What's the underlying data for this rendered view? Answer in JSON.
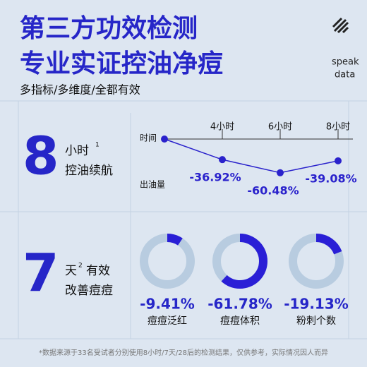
{
  "header": {
    "title_lines": [
      "第三方功效检测",
      "专业实证控油净痘"
    ],
    "subtitle": "多指标/多维度/全都有效",
    "brand": [
      "speak",
      "data"
    ]
  },
  "sections": [
    {
      "number": "8",
      "unit": "小时",
      "note": "1",
      "desc": "控油续航"
    },
    {
      "number": "7",
      "unit": "天",
      "note": "2",
      "extra": "有效",
      "desc": "改善痘痘"
    }
  ],
  "chart_data": [
    {
      "type": "line",
      "x_label": "时间",
      "y_label": "出油量",
      "categories": [
        null,
        "4小时",
        "6小时",
        "8小时"
      ],
      "values": [
        0,
        -36.92,
        -60.48,
        -39.08
      ],
      "value_labels": [
        null,
        "-36.92%",
        "-60.48%",
        "-39.08%"
      ],
      "color": "#2a22cc"
    },
    {
      "type": "donut",
      "categories": [
        "痘痘泛红",
        "痘痘体积",
        "粉刺个数"
      ],
      "values": [
        -9.41,
        -61.78,
        -19.13
      ],
      "value_labels": [
        "-9.41%",
        "-61.78%",
        "-19.13%"
      ],
      "color": "#2a1fd6",
      "track_color": "#b8cce0"
    }
  ],
  "footnote": "*数据来源于33名受试者分别使用8小时/7天/28后的检测结果，仅供参考，实际情况因人而异"
}
